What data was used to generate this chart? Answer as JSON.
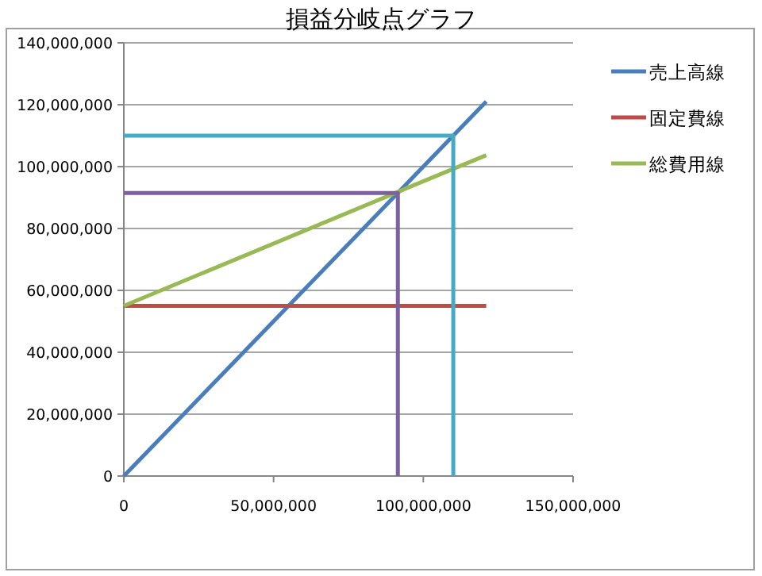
{
  "chart_data": {
    "type": "line",
    "title": "損益分岐点グラフ",
    "xlim": [
      0,
      150000000
    ],
    "ylim": [
      0,
      140000000
    ],
    "xticks": [
      {
        "value": 0,
        "label": "0"
      },
      {
        "value": 50000000,
        "label": "50,000,000"
      },
      {
        "value": 100000000,
        "label": "100,000,000"
      },
      {
        "value": 150000000,
        "label": "150,000,000"
      }
    ],
    "yticks": [
      {
        "value": 0,
        "label": "0"
      },
      {
        "value": 20000000,
        "label": "20,000,000"
      },
      {
        "value": 40000000,
        "label": "40,000,000"
      },
      {
        "value": 60000000,
        "label": "60,000,000"
      },
      {
        "value": 80000000,
        "label": "80,000,000"
      },
      {
        "value": 100000000,
        "label": "100,000,000"
      },
      {
        "value": 120000000,
        "label": "120,000,000"
      },
      {
        "value": 140000000,
        "label": "140,000,000"
      }
    ],
    "grid": "y",
    "legend": "right",
    "marker": "none",
    "line_style": "solid",
    "series": [
      {
        "name": "売上高線",
        "color": "#4a7ebb",
        "x": [
          0,
          121000000
        ],
        "values": [
          0,
          121000000
        ]
      },
      {
        "name": "固定費線",
        "color": "#be4b48",
        "x": [
          0,
          121000000
        ],
        "values": [
          55000000,
          55000000
        ]
      },
      {
        "name": "総費用線",
        "color": "#98b954",
        "x": [
          0,
          121000000
        ],
        "values": [
          55000000,
          103700000
        ]
      },
      {
        "color": "#7d60a0",
        "x": [
          0,
          91500000,
          91500000
        ],
        "values": [
          91500000,
          91500000,
          0
        ]
      },
      {
        "color": "#46aac5",
        "x": [
          0,
          110000000,
          110000000
        ],
        "values": [
          110000000,
          110000000,
          0
        ]
      }
    ]
  }
}
